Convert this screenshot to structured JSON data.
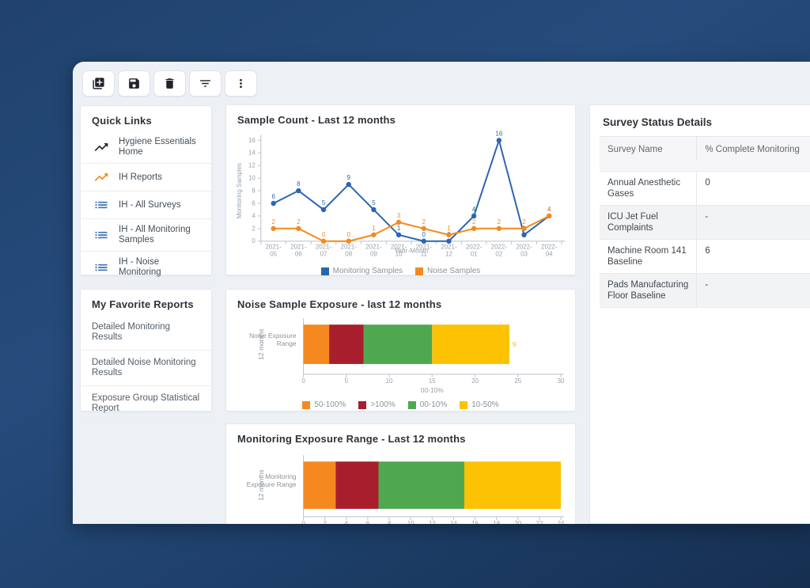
{
  "colors": {
    "blue": "#2b66b1",
    "orange": "#f5891f",
    "dark_red": "#a81e2c",
    "green": "#4fa850",
    "yellow": "#fcc203",
    "axis": "#bcc2ca",
    "axis_text": "#99a1aa"
  },
  "toolbar": {
    "buttons": [
      {
        "name": "add-copy-button",
        "icon": "library-add-icon"
      },
      {
        "name": "save-button",
        "icon": "save-icon"
      },
      {
        "name": "delete-button",
        "icon": "trash-icon"
      },
      {
        "name": "filter-button",
        "icon": "filter-icon"
      },
      {
        "name": "more-options-button",
        "icon": "more-vertical-icon"
      }
    ]
  },
  "quick_links": {
    "title": "Quick Links",
    "items": [
      {
        "label": "Hygiene Essentials Home",
        "icon": "trending-up-icon",
        "icon_color": "#23272c"
      },
      {
        "label": "IH Reports",
        "icon": "trending-up-icon",
        "icon_color": "#f5891f"
      },
      {
        "label": "IH - All Surveys",
        "icon": "list-icon",
        "icon_color": "#3a6fb5"
      },
      {
        "label": "IH - All Monitoring Samples",
        "icon": "list-icon",
        "icon_color": "#3a6fb5"
      },
      {
        "label": "IH - Noise Monitoring",
        "icon": "list-icon",
        "icon_color": "#3a6fb5"
      }
    ]
  },
  "favorites": {
    "title": "My Favorite Reports",
    "items": [
      "Detailed Monitoring Results",
      "Detailed Noise Monitoring Results",
      "Exposure Group Statistical Report"
    ]
  },
  "survey_table": {
    "title": "Survey Status Details",
    "columns": [
      "Survey Name",
      "% Complete Monitoring"
    ],
    "rows": [
      {
        "name": "Annual Anesthetic Gases",
        "value": "0"
      },
      {
        "name": "ICU Jet Fuel Complaints",
        "value": "-"
      },
      {
        "name": "Machine Room 141 Baseline",
        "value": "6"
      },
      {
        "name": "Pads Manufacturing Floor Baseline",
        "value": "-"
      }
    ]
  },
  "chart_data": [
    {
      "type": "line",
      "title": "Sample Count - Last 12 months",
      "categories": [
        "2021-05",
        "2021-06",
        "2021-07",
        "2021-08",
        "2021-09",
        "2021-10",
        "2021-11",
        "2021-12",
        "2022-01",
        "2022-02",
        "2022-03",
        "2022-04"
      ],
      "series": [
        {
          "name": "Monitoring Samples",
          "color": "#2b66b1",
          "values": [
            6,
            8,
            5,
            9,
            5,
            1,
            0,
            0,
            4,
            16,
            1,
            4
          ]
        },
        {
          "name": "Noise Samples",
          "color": "#f5891f",
          "values": [
            2,
            2,
            0,
            0,
            1,
            3,
            2,
            1,
            2,
            2,
            2,
            4
          ]
        }
      ],
      "xlabel": "Year-Month",
      "ylabel": "Monitoring Samples",
      "ylim": [
        0,
        16
      ],
      "ytick_step": 2,
      "grid": false,
      "point_labels": true,
      "legend_position": "bottom"
    },
    {
      "type": "bar",
      "orientation": "horizontal-stacked",
      "title": "Noise Sample Exposure - last 12 months",
      "category": "Noise Exposure Range",
      "category_lines": [
        "Noise Exposure",
        "Range"
      ],
      "ylabel": "12 months",
      "xlabel": "00-10%",
      "xlim": [
        0,
        30
      ],
      "xtick_step": 5,
      "segments": [
        {
          "name": "50-100%",
          "value": 3,
          "color": "#f5891f"
        },
        {
          "name": ">100%",
          "value": 4,
          "color": "#a81e2c"
        },
        {
          "name": "00-10%",
          "value": 8,
          "color": "#4fa850"
        },
        {
          "name": "10-50%",
          "value": 9,
          "color": "#fcc203"
        }
      ],
      "segment_labels": true,
      "legend": true,
      "legend_position": "bottom"
    },
    {
      "type": "bar",
      "orientation": "horizontal-stacked",
      "title": "Monitoring Exposure Range - Last 12 months",
      "category": "Monitoring Exposure Range",
      "category_lines": [
        "Monitoring",
        "Exposure Range"
      ],
      "ylabel": "12 months",
      "xlabel": "",
      "xlim": [
        0,
        24
      ],
      "xtick_step": 2,
      "segments": [
        {
          "name": "50-100%",
          "value": 3,
          "color": "#f5891f"
        },
        {
          "name": ">100%",
          "value": 4,
          "color": "#a81e2c"
        },
        {
          "name": "00-10%",
          "value": 8,
          "color": "#4fa850"
        },
        {
          "name": "10-50%",
          "value": 9,
          "color": "#fcc203"
        }
      ],
      "segment_labels": false,
      "legend": false
    }
  ]
}
